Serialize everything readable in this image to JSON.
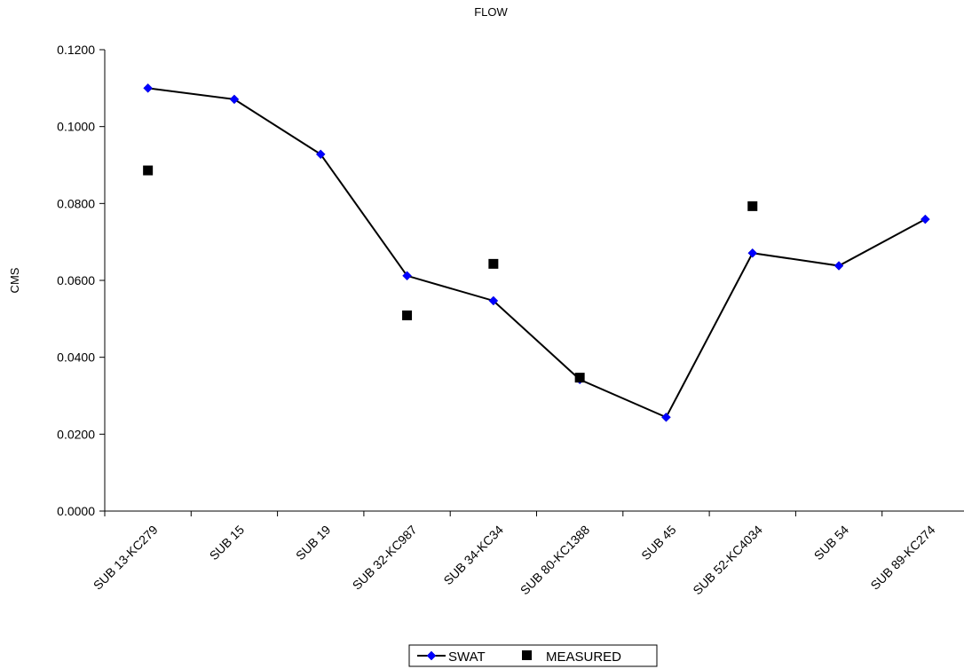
{
  "chart_data": {
    "type": "line",
    "title": "FLOW",
    "ylabel": "CMS",
    "xlabel": "",
    "ylim": [
      0,
      0.12
    ],
    "ytick_labels": [
      "0.0000",
      "0.0200",
      "0.0400",
      "0.0600",
      "0.0800",
      "0.1000",
      "0.1200"
    ],
    "yticks": [
      0,
      0.02,
      0.04,
      0.06,
      0.08,
      0.1,
      0.12
    ],
    "categories": [
      "SUB 13-KC279",
      "SUB 15",
      "SUB 19",
      "SUB 32-KC987",
      "SUB 34-KC34",
      "SUB 80-KC1388",
      "SUB 45",
      "SUB 52-KC4034",
      "SUB 54",
      "SUB 89-KC274"
    ],
    "series": [
      {
        "name": "SWAT",
        "style": "line-with-diamond-markers",
        "color": "#0000ff",
        "line_color": "#000000",
        "values": [
          0.11,
          0.1071,
          0.0928,
          0.0612,
          0.0547,
          0.0342,
          0.0244,
          0.0671,
          0.0638,
          0.0759
        ]
      },
      {
        "name": "MEASURED",
        "style": "square-markers-only",
        "color": "#000000",
        "values": [
          0.0886,
          null,
          null,
          0.0509,
          0.0643,
          0.0347,
          null,
          0.0793,
          null,
          null
        ]
      }
    ],
    "legend_position": "bottom-center",
    "grid": false
  }
}
